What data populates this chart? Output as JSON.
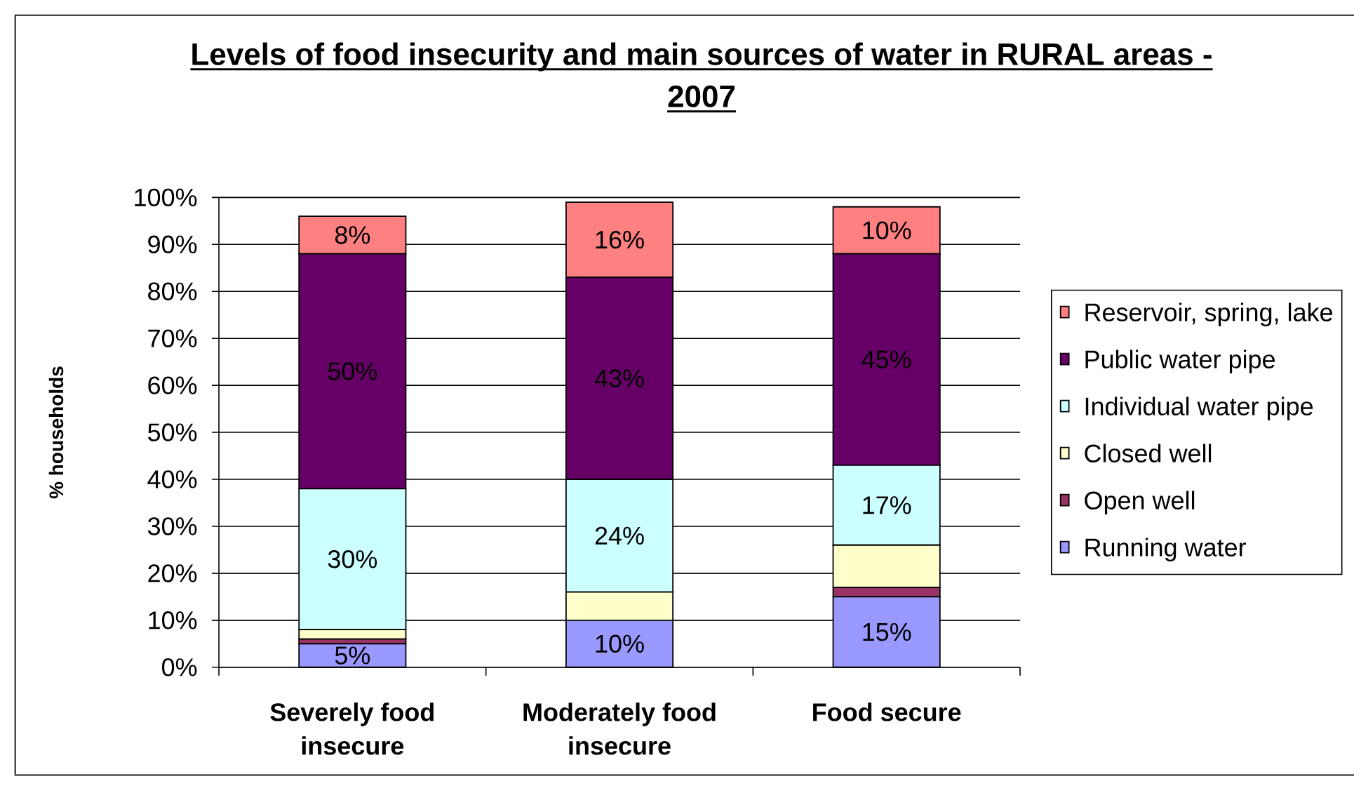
{
  "chart_data": {
    "type": "bar",
    "stacked": true,
    "title": "Levels of food insecurity and main sources of water in RURAL areas - 2007",
    "ylabel": "% households",
    "categories": [
      "Severely food insecure",
      "Moderately food insecure",
      "Food secure"
    ],
    "series": [
      {
        "name": "Running water",
        "color": "#9999ff",
        "values": [
          5,
          10,
          15
        ],
        "value_labels": [
          "5%",
          "10%",
          "15%"
        ]
      },
      {
        "name": "Open well",
        "color": "#993366",
        "values": [
          1,
          0,
          2
        ]
      },
      {
        "name": "Closed well",
        "color": "#ffffcc",
        "values": [
          2,
          6,
          9
        ]
      },
      {
        "name": "Individual water pipe",
        "color": "#ccffff",
        "values": [
          30,
          24,
          17
        ],
        "value_labels": [
          "30%",
          "24%",
          "17%"
        ]
      },
      {
        "name": "Public water pipe",
        "color": "#660066",
        "values": [
          50,
          43,
          45
        ],
        "value_labels": [
          "50%",
          "43%",
          "45%"
        ]
      },
      {
        "name": "Reservoir, spring, lake",
        "color": "#ff8080",
        "values": [
          8,
          16,
          10
        ],
        "value_labels": [
          "8%",
          "16%",
          "10%"
        ]
      }
    ],
    "ylim": [
      0,
      100
    ],
    "yticks": [
      {
        "value": 0,
        "label": "0%"
      },
      {
        "value": 10,
        "label": "10%"
      },
      {
        "value": 20,
        "label": "20%"
      },
      {
        "value": 30,
        "label": "30%"
      },
      {
        "value": 40,
        "label": "40%"
      },
      {
        "value": 50,
        "label": "50%"
      },
      {
        "value": 60,
        "label": "60%"
      },
      {
        "value": 70,
        "label": "70%"
      },
      {
        "value": 80,
        "label": "80%"
      },
      {
        "value": 90,
        "label": "90%"
      },
      {
        "value": 100,
        "label": "100%"
      }
    ],
    "grid": "y",
    "legend": "right"
  }
}
